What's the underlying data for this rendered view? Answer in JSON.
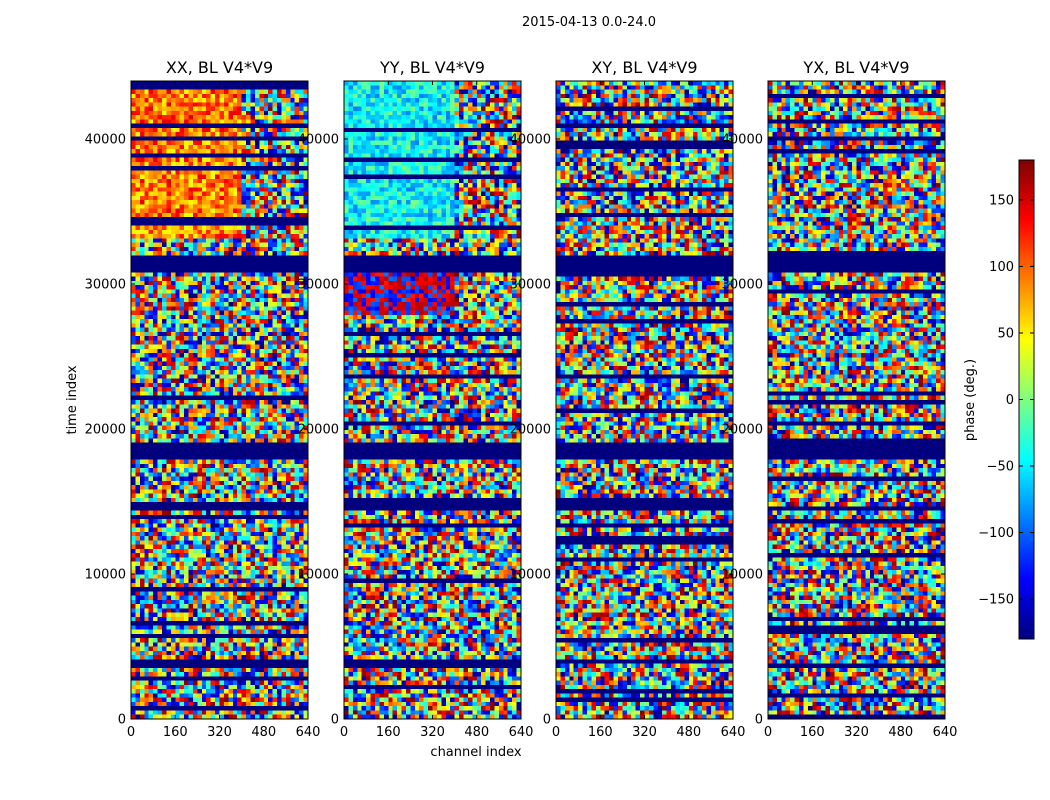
{
  "figure_title": "2015-04-13 0.0-24.0",
  "chart_data": {
    "type": "heatmap",
    "suptitle": "2015-04-13 0.0-24.0",
    "xlabel": "channel index",
    "ylabel": "time index",
    "xlim": [
      0,
      640
    ],
    "ylim": [
      0,
      44000
    ],
    "xticks": [
      0,
      160,
      320,
      480,
      640
    ],
    "yticks": [
      0,
      10000,
      20000,
      30000,
      40000
    ],
    "colormap": "jet",
    "colorbar": {
      "label": "phase (deg.)",
      "range": [
        -180,
        180
      ],
      "ticks": [
        -150,
        -100,
        -50,
        0,
        50,
        100,
        150
      ],
      "tick_labels": [
        "−150",
        "−100",
        "−50",
        "0",
        "50",
        "100",
        "150"
      ],
      "colors": [
        "#00007f",
        "#0000ff",
        "#007fff",
        "#00ffff",
        "#7fff7f",
        "#ffff00",
        "#ff7f00",
        "#ff0000",
        "#7f0000"
      ]
    },
    "panels": [
      {
        "title": "XX, BL V4*V9"
      },
      {
        "title": "YY, BL V4*V9"
      },
      {
        "title": "XY, BL V4*V9"
      },
      {
        "title": "YX, BL V4*V9"
      }
    ],
    "flagged_bands": [
      [
        30900,
        32100
      ],
      [
        17900,
        19200
      ],
      [
        14400,
        14800
      ]
    ],
    "notes": "Per-channel phase waterfall; dark blue horizontal bands are flagged (masked) time ranges."
  }
}
